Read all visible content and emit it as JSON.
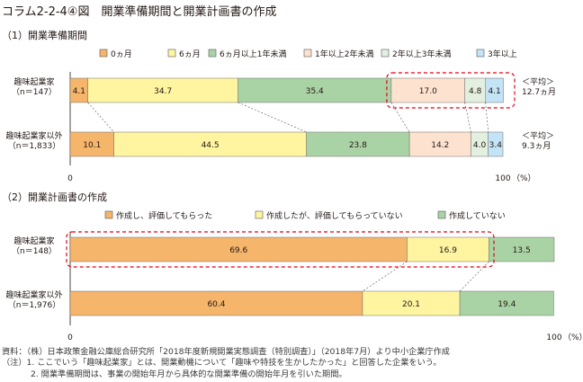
{
  "page_title": "コラム2-2-4④図　開業準備期間と開業計画書の作成",
  "colors": {
    "orange": "#f5b56b",
    "yellow": "#fff5a0",
    "green": "#aad3a5",
    "peach": "#fde3cf",
    "pale_green": "#e3f0df",
    "light_blue": "#c3e4f6",
    "highlight_red": "#e60012"
  },
  "chart_data": [
    {
      "type": "bar",
      "orientation": "horizontal",
      "stacked": true,
      "title": "（1）開業準備期間",
      "categories": [
        "趣味起業家\n（n＝147）",
        "趣味起業家以外\n（n＝1,833）"
      ],
      "series": [
        {
          "name": "0ヵ月",
          "values": [
            4.1,
            10.1
          ]
        },
        {
          "name": "6ヵ月",
          "values": [
            34.7,
            44.5
          ]
        },
        {
          "name": "6ヵ月以上1年未満",
          "values": [
            35.4,
            23.8
          ]
        },
        {
          "name": "1年以上2年未満",
          "values": [
            17.0,
            14.2
          ]
        },
        {
          "name": "2年以上3年未満",
          "values": [
            4.8,
            4.0
          ]
        },
        {
          "name": "3年以上",
          "values": [
            4.1,
            3.4
          ]
        }
      ],
      "row_notes": [
        "＜平均＞\n12.7ヵ月",
        "＜平均＞\n9.3ヵ月"
      ],
      "xlim": [
        0,
        100
      ],
      "x_ticks": [
        "0",
        "100"
      ],
      "x_unit": "（%）",
      "legend_position": "top"
    },
    {
      "type": "bar",
      "orientation": "horizontal",
      "stacked": true,
      "title": "（2）開業計画書の作成",
      "categories": [
        "趣味起業家\n（n＝148）",
        "趣味起業家以外\n（n＝1,976）"
      ],
      "series": [
        {
          "name": "作成し、評価してもらった",
          "values": [
            69.6,
            60.4
          ]
        },
        {
          "name": "作成したが、評価してもらっていない",
          "values": [
            16.9,
            20.1
          ]
        },
        {
          "name": "作成していない",
          "values": [
            13.5,
            19.4
          ]
        }
      ],
      "xlim": [
        0,
        100
      ],
      "x_ticks": [
        "0",
        "100"
      ],
      "x_unit": "（%）",
      "legend_position": "top"
    }
  ],
  "notes": [
    "資料：（株）日本政策金融公庫総合研究所「2018年度新規開業実態調査（特別調査）」（2018年7月）より中小企業庁作成",
    "（注）1. ここでいう「趣味起業家」とは、開業動機について「趣味や特技を生かしたかった」と回答した企業をいう。",
    "2. 開業準備期間は、事業の開始年月から具体的な開業準備の開始年月を引いた期間。"
  ]
}
